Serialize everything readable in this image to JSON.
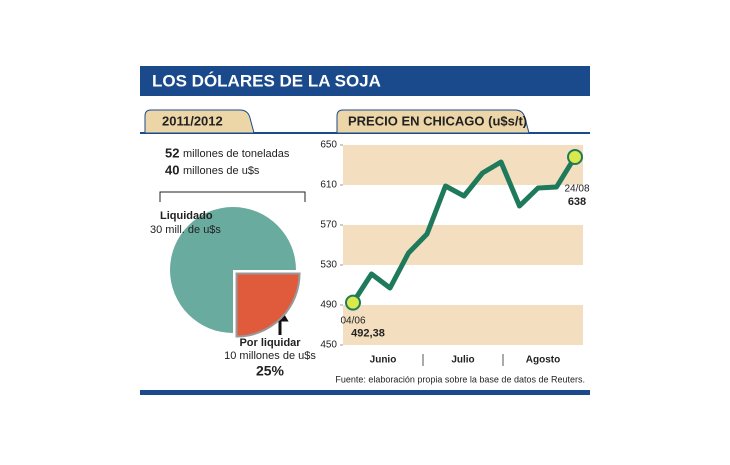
{
  "header": {
    "title": "LOS DÓLARES DE LA SOJA"
  },
  "source": "Fuente: elaboración propia sobre la base de datos de Reuters.",
  "chart_data": [
    {
      "type": "pie",
      "title": "2011/2012",
      "facts": [
        {
          "value": 52,
          "label": "millones de toneladas"
        },
        {
          "value": 40,
          "label": "millones de u$s"
        }
      ],
      "categories": [
        "Liquidado",
        "Por liquidar"
      ],
      "values": [
        30,
        10
      ],
      "value_labels": [
        "30 mill. de u$s",
        "10 millones de u$s"
      ],
      "colors": [
        "#6aaba0",
        "#e05a3c"
      ],
      "annotation": "25%"
    },
    {
      "type": "line",
      "title": "PRECIO EN CHICAGO (u$s/t)",
      "x": [
        "04/06",
        null,
        null,
        null,
        null,
        null,
        null,
        null,
        null,
        null,
        null,
        null,
        "24/08"
      ],
      "months": [
        "Junio",
        "Julio",
        "Agosto"
      ],
      "values": [
        492.38,
        521,
        507,
        542,
        561,
        609,
        599,
        622,
        633,
        589,
        607,
        608,
        638
      ],
      "value_labels": [
        "492,38",
        null,
        null,
        null,
        null,
        null,
        null,
        null,
        null,
        null,
        null,
        null,
        "638"
      ],
      "color": "#1e7a5a",
      "ylim": [
        450,
        650
      ],
      "yticks": [
        450,
        490,
        530,
        570,
        610,
        650
      ],
      "band_color": "#f3dfc0"
    }
  ]
}
